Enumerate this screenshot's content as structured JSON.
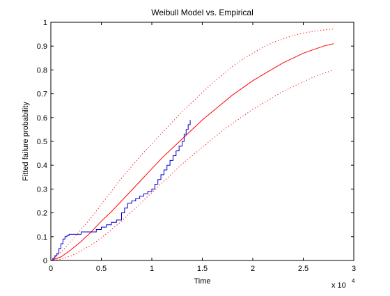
{
  "chart_data": {
    "type": "line",
    "title": "Weibull Model vs. Empirical",
    "xlabel": "Time",
    "ylabel": "Fitted failure probability",
    "x_multiplier_label": "x 10",
    "x_multiplier_exponent": "4",
    "xlim": [
      0,
      30000
    ],
    "ylim": [
      0,
      1
    ],
    "xticks": [
      0,
      5000,
      10000,
      15000,
      20000,
      25000,
      30000
    ],
    "xtick_labels": [
      "0",
      "0.5",
      "1",
      "1.5",
      "2",
      "2.5",
      "3"
    ],
    "yticks": [
      0,
      0.1,
      0.2,
      0.3,
      0.4,
      0.5,
      0.6,
      0.7,
      0.8,
      0.9,
      1
    ],
    "ytick_labels": [
      "0",
      "0.1",
      "0.2",
      "0.3",
      "0.4",
      "0.5",
      "0.6",
      "0.7",
      "0.8",
      "0.9",
      "1"
    ],
    "grid": false,
    "legend": "none",
    "series": [
      {
        "style": "solid",
        "color": "#ff0000",
        "x": [
          0,
          1000,
          2000,
          3000,
          4000,
          5000,
          6000,
          7000,
          8000,
          9000,
          10000,
          11000,
          12000,
          13000,
          14000,
          15000,
          16000,
          17000,
          18000,
          19000,
          20000,
          21000,
          22000,
          23000,
          24000,
          25000,
          26000,
          27000,
          28000
        ],
        "y": [
          0,
          0.015,
          0.045,
          0.08,
          0.12,
          0.165,
          0.205,
          0.25,
          0.295,
          0.34,
          0.385,
          0.43,
          0.47,
          0.51,
          0.55,
          0.59,
          0.625,
          0.66,
          0.695,
          0.725,
          0.755,
          0.78,
          0.805,
          0.83,
          0.85,
          0.87,
          0.885,
          0.9,
          0.91
        ]
      },
      {
        "style": "dotted",
        "color": "#ff0000",
        "x": [
          0,
          1000,
          2000,
          3000,
          4000,
          5000,
          6000,
          7000,
          8000,
          9000,
          10000,
          11000,
          12000,
          13000,
          14000,
          15000,
          16000,
          17000,
          18000,
          19000,
          20000,
          21000,
          22000,
          23000,
          24000,
          25000,
          26000,
          27000,
          28000
        ],
        "y": [
          0,
          0.035,
          0.08,
          0.13,
          0.18,
          0.235,
          0.29,
          0.345,
          0.395,
          0.445,
          0.49,
          0.535,
          0.58,
          0.625,
          0.665,
          0.705,
          0.745,
          0.78,
          0.815,
          0.845,
          0.87,
          0.895,
          0.915,
          0.93,
          0.945,
          0.955,
          0.962,
          0.968,
          0.972
        ]
      },
      {
        "style": "dotted",
        "color": "#ff0000",
        "x": [
          0,
          1000,
          2000,
          3000,
          4000,
          5000,
          6000,
          7000,
          8000,
          9000,
          10000,
          11000,
          12000,
          13000,
          14000,
          15000,
          16000,
          17000,
          18000,
          19000,
          20000,
          21000,
          22000,
          23000,
          24000,
          25000,
          26000,
          27000,
          28000
        ],
        "y": [
          0,
          0.005,
          0.02,
          0.04,
          0.065,
          0.095,
          0.13,
          0.165,
          0.205,
          0.245,
          0.285,
          0.325,
          0.365,
          0.405,
          0.44,
          0.475,
          0.51,
          0.545,
          0.575,
          0.605,
          0.635,
          0.66,
          0.685,
          0.71,
          0.73,
          0.75,
          0.77,
          0.785,
          0.8
        ]
      },
      {
        "style": "step",
        "color": "#0000cc",
        "x": [
          0,
          200,
          400,
          600,
          800,
          1000,
          1200,
          1400,
          1600,
          1800,
          2000,
          2400,
          3000,
          3500,
          4000,
          4500,
          5000,
          5500,
          6000,
          6500,
          7000,
          7300,
          7600,
          8000,
          8400,
          8800,
          9200,
          9600,
          10000,
          10300,
          10600,
          10900,
          11200,
          11500,
          11800,
          12100,
          12400,
          12700,
          13000,
          13200,
          13400,
          13600,
          13800
        ],
        "y": [
          0,
          0.01,
          0.02,
          0.03,
          0.05,
          0.07,
          0.09,
          0.1,
          0.105,
          0.11,
          0.11,
          0.11,
          0.12,
          0.12,
          0.12,
          0.13,
          0.14,
          0.15,
          0.16,
          0.17,
          0.2,
          0.22,
          0.24,
          0.25,
          0.26,
          0.27,
          0.28,
          0.29,
          0.3,
          0.32,
          0.34,
          0.36,
          0.38,
          0.4,
          0.42,
          0.44,
          0.46,
          0.48,
          0.5,
          0.53,
          0.55,
          0.57,
          0.59
        ]
      }
    ]
  }
}
